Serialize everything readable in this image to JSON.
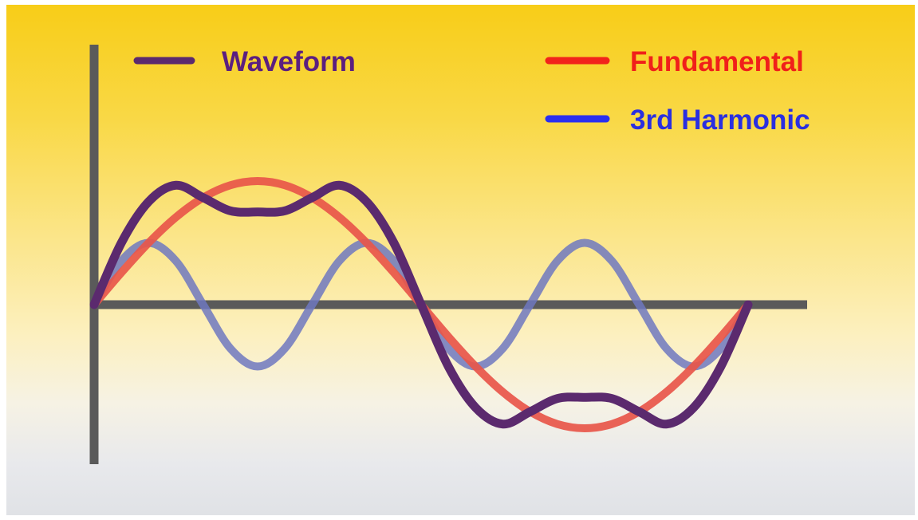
{
  "chart_data": {
    "type": "line",
    "title": "",
    "xlabel": "",
    "ylabel": "",
    "x": [
      0,
      15,
      30,
      45,
      60,
      75,
      90,
      105,
      120,
      135,
      150,
      165,
      180,
      195,
      210,
      225,
      240,
      255,
      270,
      285,
      300,
      315,
      330,
      345,
      360
    ],
    "xlim": [
      0,
      360
    ],
    "ylim": [
      -1.5,
      1.5
    ],
    "grid": false,
    "legend_position": "top",
    "series": [
      {
        "name": "Waveform",
        "color": "#5b2a6e",
        "values": [
          0,
          0.5,
          0.833,
          0.966,
          0.866,
          0.759,
          0.75,
          0.759,
          0.866,
          0.966,
          0.833,
          0.5,
          0,
          -0.5,
          -0.833,
          -0.966,
          -0.866,
          -0.759,
          -0.75,
          -0.759,
          -0.866,
          -0.966,
          -0.833,
          -0.5,
          0
        ]
      },
      {
        "name": "Fundamental",
        "color": "#e8564a",
        "values": [
          0,
          0.259,
          0.5,
          0.707,
          0.866,
          0.966,
          1,
          0.966,
          0.866,
          0.707,
          0.5,
          0.259,
          0,
          -0.259,
          -0.5,
          -0.707,
          -0.866,
          -0.966,
          -1,
          -0.966,
          -0.866,
          -0.707,
          -0.5,
          -0.259,
          0
        ]
      },
      {
        "name": "3rd Harmonic",
        "color": "#6f78c0",
        "values": [
          0,
          0.354,
          0.5,
          0.354,
          0,
          -0.354,
          -0.5,
          -0.354,
          0,
          0.354,
          0.5,
          0.354,
          0,
          -0.354,
          -0.5,
          -0.354,
          0,
          0.354,
          0.5,
          0.354,
          0,
          -0.354,
          -0.5,
          -0.354,
          0
        ]
      }
    ],
    "legend": [
      {
        "label": "Waveform",
        "swatch_color": "#5b2a6e",
        "text_color": "#5b1f80"
      },
      {
        "label": "Fundamental",
        "swatch_color": "#f2231b",
        "text_color": "#f0201a"
      },
      {
        "label": "3rd Harmonic",
        "swatch_color": "#2a2ff0",
        "text_color": "#2a2fe0"
      }
    ],
    "axis_color": "#5a5a5a"
  }
}
